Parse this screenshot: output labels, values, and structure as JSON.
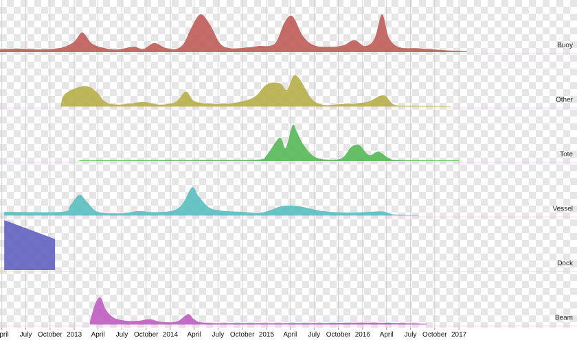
{
  "chart_data": {
    "type": "area",
    "subtype": "ridgeline",
    "title": "",
    "xlabel": "",
    "ylabel": "",
    "x_unit": "month",
    "x_range": [
      "2012-03-25",
      "2017-11-15"
    ],
    "x_ticks": [
      {
        "date": "2012-04-01",
        "label": "April"
      },
      {
        "date": "2012-07-01",
        "label": "July"
      },
      {
        "date": "2012-10-01",
        "label": "October"
      },
      {
        "date": "2013-01-01",
        "label": "2013"
      },
      {
        "date": "2013-04-01",
        "label": "April"
      },
      {
        "date": "2013-07-01",
        "label": "July"
      },
      {
        "date": "2013-10-01",
        "label": "October"
      },
      {
        "date": "2014-01-01",
        "label": "2014"
      },
      {
        "date": "2014-04-01",
        "label": "April"
      },
      {
        "date": "2014-07-01",
        "label": "July"
      },
      {
        "date": "2014-10-01",
        "label": "October"
      },
      {
        "date": "2015-01-01",
        "label": "2015"
      },
      {
        "date": "2015-04-01",
        "label": "April"
      },
      {
        "date": "2015-07-01",
        "label": "July"
      },
      {
        "date": "2015-10-01",
        "label": "October"
      },
      {
        "date": "2016-01-01",
        "label": "2016"
      },
      {
        "date": "2016-04-01",
        "label": "April"
      },
      {
        "date": "2016-07-01",
        "label": "July"
      },
      {
        "date": "2016-10-01",
        "label": "October"
      },
      {
        "date": "2017-01-01",
        "label": "2017"
      }
    ],
    "grid": true,
    "legend": "row labels at right",
    "y_scale": "relative density per row (0-1)",
    "series": [
      {
        "name": "Buoy",
        "color": "#c0605c",
        "points": [
          [
            "2012-03-25",
            0.07
          ],
          [
            "2012-06-01",
            0.09
          ],
          [
            "2012-09-01",
            0.07
          ],
          [
            "2012-11-15",
            0.12
          ],
          [
            "2013-01-01",
            0.28
          ],
          [
            "2013-02-01",
            0.52
          ],
          [
            "2013-03-10",
            0.22
          ],
          [
            "2013-05-01",
            0.1
          ],
          [
            "2013-06-15",
            0.07
          ],
          [
            "2013-08-15",
            0.14
          ],
          [
            "2013-09-20",
            0.08
          ],
          [
            "2013-11-01",
            0.24
          ],
          [
            "2013-12-10",
            0.12
          ],
          [
            "2014-01-20",
            0.08
          ],
          [
            "2014-02-20",
            0.22
          ],
          [
            "2014-03-20",
            0.62
          ],
          [
            "2014-04-25",
            1.0
          ],
          [
            "2014-06-01",
            0.72
          ],
          [
            "2014-07-10",
            0.22
          ],
          [
            "2014-08-20",
            0.1
          ],
          [
            "2014-10-15",
            0.12
          ],
          [
            "2014-12-01",
            0.16
          ],
          [
            "2015-02-01",
            0.22
          ],
          [
            "2015-03-10",
            0.78
          ],
          [
            "2015-04-10",
            0.95
          ],
          [
            "2015-05-20",
            0.42
          ],
          [
            "2015-07-01",
            0.18
          ],
          [
            "2015-09-01",
            0.14
          ],
          [
            "2015-10-20",
            0.18
          ],
          [
            "2015-12-01",
            0.32
          ],
          [
            "2016-01-10",
            0.16
          ],
          [
            "2016-02-15",
            0.35
          ],
          [
            "2016-03-15",
            1.0
          ],
          [
            "2016-04-10",
            0.38
          ],
          [
            "2016-05-20",
            0.13
          ],
          [
            "2016-08-01",
            0.1
          ],
          [
            "2016-12-01",
            0.04
          ],
          [
            "2017-02-01",
            0.02
          ]
        ]
      },
      {
        "name": "Other",
        "color": "#b8b04c",
        "points": [
          [
            "2012-11-10",
            0.0
          ],
          [
            "2012-11-25",
            0.32
          ],
          [
            "2013-01-20",
            0.52
          ],
          [
            "2013-03-01",
            0.52
          ],
          [
            "2013-04-01",
            0.35
          ],
          [
            "2013-05-01",
            0.12
          ],
          [
            "2013-06-20",
            0.05
          ],
          [
            "2013-09-20",
            0.12
          ],
          [
            "2013-11-20",
            0.05
          ],
          [
            "2014-01-20",
            0.12
          ],
          [
            "2014-03-01",
            0.4
          ],
          [
            "2014-04-01",
            0.15
          ],
          [
            "2014-06-01",
            0.08
          ],
          [
            "2014-09-01",
            0.1
          ],
          [
            "2014-11-15",
            0.25
          ],
          [
            "2015-01-01",
            0.58
          ],
          [
            "2015-02-20",
            0.62
          ],
          [
            "2015-03-20",
            0.45
          ],
          [
            "2015-04-15",
            0.82
          ],
          [
            "2015-05-10",
            0.7
          ],
          [
            "2015-06-20",
            0.22
          ],
          [
            "2015-08-01",
            0.05
          ],
          [
            "2015-10-01",
            0.06
          ],
          [
            "2016-01-15",
            0.12
          ],
          [
            "2016-03-20",
            0.3
          ],
          [
            "2016-05-01",
            0.05
          ],
          [
            "2016-07-15",
            0.02
          ],
          [
            "2016-12-01",
            0.01
          ]
        ]
      },
      {
        "name": "Tote",
        "color": "#5aba5a",
        "points": [
          [
            "2013-01-20",
            0.02
          ],
          [
            "2014-06-01",
            0.03
          ],
          [
            "2014-12-01",
            0.04
          ],
          [
            "2015-01-01",
            0.15
          ],
          [
            "2015-02-20",
            0.62
          ],
          [
            "2015-03-15",
            0.35
          ],
          [
            "2015-04-10",
            0.95
          ],
          [
            "2015-04-25",
            0.8
          ],
          [
            "2015-05-20",
            0.45
          ],
          [
            "2015-07-01",
            0.12
          ],
          [
            "2015-08-20",
            0.04
          ],
          [
            "2015-10-15",
            0.08
          ],
          [
            "2015-11-20",
            0.38
          ],
          [
            "2015-12-20",
            0.42
          ],
          [
            "2016-01-25",
            0.16
          ],
          [
            "2016-03-01",
            0.25
          ],
          [
            "2016-04-10",
            0.08
          ],
          [
            "2016-05-20",
            0.03
          ],
          [
            "2017-01-01",
            0.02
          ]
        ]
      },
      {
        "name": "Vessel",
        "color": "#5cc0c0",
        "points": [
          [
            "2012-04-10",
            0.1
          ],
          [
            "2012-11-15",
            0.1
          ],
          [
            "2012-12-15",
            0.25
          ],
          [
            "2013-01-20",
            0.55
          ],
          [
            "2013-02-20",
            0.35
          ],
          [
            "2013-04-01",
            0.1
          ],
          [
            "2013-07-01",
            0.06
          ],
          [
            "2013-09-01",
            0.12
          ],
          [
            "2013-11-01",
            0.09
          ],
          [
            "2014-01-15",
            0.14
          ],
          [
            "2014-02-20",
            0.35
          ],
          [
            "2014-03-25",
            0.75
          ],
          [
            "2014-04-20",
            0.5
          ],
          [
            "2014-06-01",
            0.2
          ],
          [
            "2014-08-01",
            0.12
          ],
          [
            "2014-10-01",
            0.1
          ],
          [
            "2014-12-01",
            0.07
          ],
          [
            "2015-01-15",
            0.14
          ],
          [
            "2015-03-01",
            0.25
          ],
          [
            "2015-05-01",
            0.25
          ],
          [
            "2015-08-01",
            0.12
          ],
          [
            "2015-11-01",
            0.08
          ],
          [
            "2016-01-01",
            0.09
          ],
          [
            "2016-03-15",
            0.11
          ],
          [
            "2016-05-01",
            0.03
          ],
          [
            "2016-08-01",
            0.01
          ]
        ]
      },
      {
        "name": "Dock",
        "color": "#6464c2",
        "points": [
          [
            "2012-04-10",
            1.0
          ],
          [
            "2012-10-20",
            0.62
          ]
        ]
      },
      {
        "name": "Beam",
        "color": "#c060c2",
        "points": [
          [
            "2013-03-01",
            0.05
          ],
          [
            "2013-03-20",
            0.52
          ],
          [
            "2013-04-10",
            0.72
          ],
          [
            "2013-05-01",
            0.4
          ],
          [
            "2013-06-01",
            0.18
          ],
          [
            "2013-07-20",
            0.1
          ],
          [
            "2013-09-01",
            0.1
          ],
          [
            "2013-10-15",
            0.14
          ],
          [
            "2013-11-20",
            0.08
          ],
          [
            "2014-01-01",
            0.06
          ],
          [
            "2014-02-01",
            0.1
          ],
          [
            "2014-03-10",
            0.28
          ],
          [
            "2014-04-01",
            0.14
          ],
          [
            "2014-05-10",
            0.05
          ],
          [
            "2014-10-01",
            0.04
          ],
          [
            "2015-06-01",
            0.04
          ],
          [
            "2016-01-01",
            0.05
          ],
          [
            "2016-06-01",
            0.04
          ],
          [
            "2016-09-01",
            0.02
          ]
        ]
      }
    ]
  }
}
